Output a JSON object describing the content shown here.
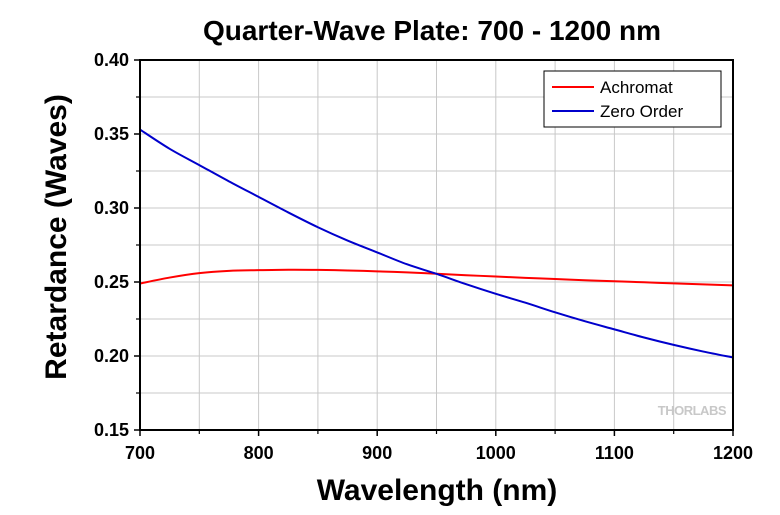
{
  "chart_data": {
    "type": "line",
    "title": "Quarter-Wave Plate: 700 - 1200 nm",
    "xlabel": "Wavelength (nm)",
    "ylabel": "Retardance (Waves)",
    "xlim": [
      700,
      1200
    ],
    "ylim": [
      0.15,
      0.4
    ],
    "xticks": [
      700,
      800,
      900,
      1000,
      1100,
      1200
    ],
    "xtick_labels": [
      "700",
      "800",
      "900",
      "1000",
      "1100",
      "1200"
    ],
    "yticks": [
      0.15,
      0.2,
      0.25,
      0.3,
      0.35,
      0.4
    ],
    "ytick_labels": [
      "0.15",
      "0.20",
      "0.25",
      "0.30",
      "0.35",
      "0.40"
    ],
    "grid": true,
    "legend_position": "top-right",
    "watermark": "THORLABS",
    "series": [
      {
        "name": "Achromat",
        "color": "#ff0000",
        "x": [
          700,
          725,
          750,
          775,
          800,
          825,
          850,
          875,
          900,
          925,
          950,
          975,
          1000,
          1025,
          1050,
          1075,
          1100,
          1125,
          1150,
          1175,
          1200
        ],
        "y": [
          0.249,
          0.253,
          0.256,
          0.2575,
          0.258,
          0.2583,
          0.2582,
          0.2578,
          0.2572,
          0.2565,
          0.2556,
          0.2546,
          0.2537,
          0.2528,
          0.252,
          0.2512,
          0.2505,
          0.2498,
          0.2491,
          0.2484,
          0.2477
        ]
      },
      {
        "name": "Zero Order",
        "color": "#0000cc",
        "x": [
          700,
          725,
          750,
          775,
          800,
          825,
          850,
          875,
          900,
          925,
          950,
          975,
          1000,
          1025,
          1050,
          1075,
          1100,
          1125,
          1150,
          1175,
          1200
        ],
        "y": [
          0.353,
          0.34,
          0.329,
          0.318,
          0.3075,
          0.297,
          0.287,
          0.278,
          0.27,
          0.262,
          0.2555,
          0.2485,
          0.242,
          0.236,
          0.2295,
          0.2235,
          0.218,
          0.2125,
          0.2075,
          0.203,
          0.199
        ]
      }
    ]
  }
}
